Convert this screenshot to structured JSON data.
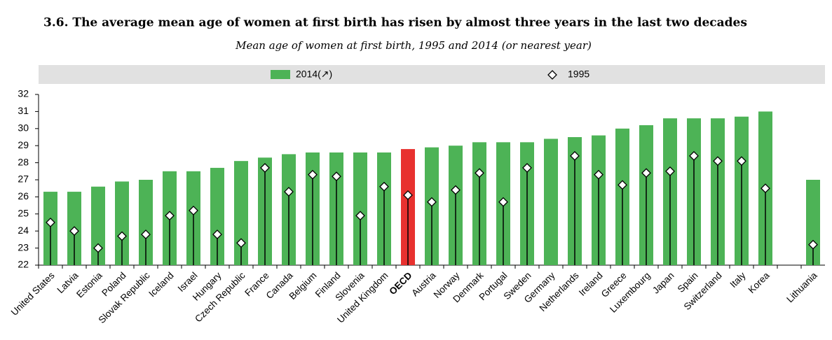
{
  "chart_data": {
    "type": "bar",
    "title": "3.6.  The average mean age of women at first birth has risen by almost three years in the last two decades",
    "subtitle": "Mean age of women at first birth, 1995 and 2014 (or nearest year)",
    "categories": [
      "United States",
      "Latvia",
      "Estonia",
      "Poland",
      "Slovak Republic",
      "Iceland",
      "Israel",
      "Hungary",
      "Czech Republic",
      "France",
      "Canada",
      "Belgium",
      "Finland",
      "Slovenia",
      "United Kingdom",
      "OECD",
      "Austria",
      "Norway",
      "Denmark",
      "Portugal",
      "Sweden",
      "Germany",
      "Netherlands",
      "Ireland",
      "Greece",
      "Luxembourg",
      "Japan",
      "Spain",
      "Switzerland",
      "Italy",
      "Korea",
      null,
      "Lithuania"
    ],
    "series": [
      {
        "name": "2014(↗)",
        "color": "#4db356",
        "values": [
          26.3,
          26.3,
          26.6,
          26.9,
          27.0,
          27.5,
          27.5,
          27.7,
          28.1,
          28.3,
          28.5,
          28.6,
          28.6,
          28.6,
          28.6,
          28.8,
          28.9,
          29.0,
          29.2,
          29.2,
          29.2,
          29.4,
          29.5,
          29.6,
          30.0,
          30.2,
          30.6,
          30.6,
          30.6,
          30.7,
          31.0,
          null,
          27.0
        ]
      },
      {
        "name": "1995",
        "color": "#000000",
        "marker": "diamond",
        "values": [
          24.5,
          24.0,
          23.0,
          23.7,
          23.8,
          24.9,
          25.2,
          23.8,
          23.3,
          27.7,
          26.3,
          27.3,
          27.2,
          24.9,
          26.6,
          26.1,
          25.7,
          26.4,
          27.4,
          25.7,
          27.7,
          null,
          28.4,
          27.3,
          26.7,
          27.4,
          27.5,
          28.4,
          28.1,
          28.1,
          26.5,
          null,
          23.2
        ]
      }
    ],
    "highlight": {
      "category": "OECD",
      "color": "#e8312f"
    },
    "ylim": [
      22,
      32
    ],
    "yticks": [
      22,
      23,
      24,
      25,
      26,
      27,
      28,
      29,
      30,
      31,
      32
    ],
    "grid": false
  }
}
